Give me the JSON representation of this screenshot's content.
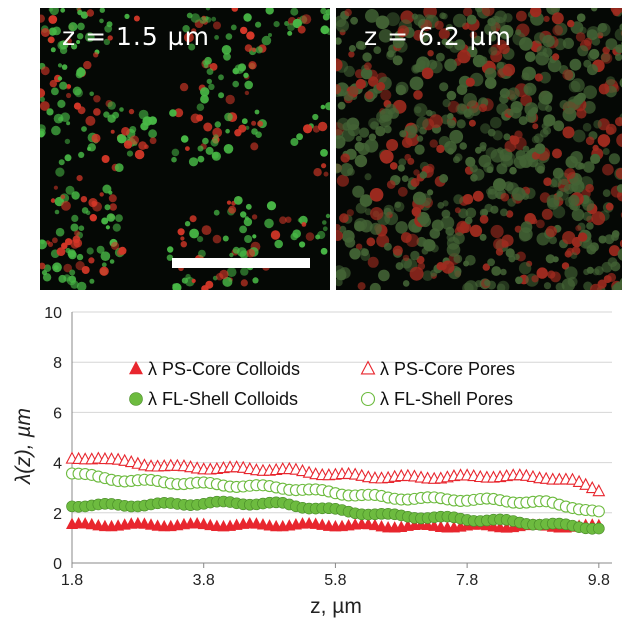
{
  "images": {
    "left": {
      "label": "z = 1.5 µm"
    },
    "right": {
      "label": "z = 6.2 µm"
    }
  },
  "colors": {
    "panel_background": "#050805",
    "green_fluorescence": "#4cc24a",
    "red_fluorescence": "#e03a2a",
    "core_series": "#e8262e",
    "shell_series": "#6dbb3f"
  },
  "chart_data": {
    "type": "scatter",
    "xlabel": "z, µm",
    "ylabel": "λ(z), µm",
    "xlim": [
      1.8,
      10.0
    ],
    "ylim": [
      0,
      10
    ],
    "xticks": [
      1.8,
      3.8,
      5.8,
      7.8,
      9.8
    ],
    "xtick_labels": [
      "1.8",
      "3.8",
      "5.8",
      "7.8",
      "9.8"
    ],
    "yticks": [
      0,
      2,
      4,
      6,
      8,
      10
    ],
    "ytick_labels": [
      "0",
      "2",
      "4",
      "6",
      "8",
      "10"
    ],
    "grid": "horizontal",
    "legend_position": "inside-center",
    "series": [
      {
        "name": "λ PS-Core Colloids",
        "marker": "triangle-filled",
        "color": "#e8262e",
        "x": [
          1.8,
          2.6,
          3.4,
          4.2,
          5.0,
          5.8,
          6.6,
          7.4,
          8.2,
          9.0,
          9.8
        ],
        "y": [
          1.5,
          1.5,
          1.5,
          1.5,
          1.5,
          1.5,
          1.45,
          1.45,
          1.45,
          1.45,
          1.45
        ]
      },
      {
        "name": "λ PS-Core Pores",
        "marker": "triangle-open",
        "color": "#e8262e",
        "x": [
          1.8,
          2.2,
          2.6,
          3.4,
          4.2,
          5.0,
          5.8,
          6.6,
          7.4,
          8.2,
          9.0,
          9.4,
          9.8
        ],
        "y": [
          4.1,
          4.2,
          4.0,
          3.8,
          3.75,
          3.7,
          3.5,
          3.4,
          3.4,
          3.45,
          3.4,
          3.25,
          2.9
        ]
      },
      {
        "name": "λ FL-Shell Colloids",
        "marker": "circle-filled",
        "color": "#6dbb3f",
        "x": [
          1.8,
          2.6,
          3.4,
          4.2,
          5.0,
          5.8,
          6.6,
          7.4,
          8.2,
          9.0,
          9.8
        ],
        "y": [
          2.3,
          2.3,
          2.35,
          2.4,
          2.35,
          2.1,
          1.9,
          1.8,
          1.7,
          1.55,
          1.4
        ]
      },
      {
        "name": "λ FL-Shell Pores",
        "marker": "circle-open",
        "color": "#6dbb3f",
        "x": [
          1.8,
          2.2,
          2.6,
          3.4,
          4.2,
          5.0,
          5.8,
          6.6,
          7.4,
          8.2,
          9.0,
          9.4,
          9.8
        ],
        "y": [
          3.6,
          3.4,
          3.3,
          3.2,
          3.1,
          3.0,
          2.8,
          2.6,
          2.55,
          2.5,
          2.4,
          2.25,
          2.0
        ]
      }
    ]
  }
}
